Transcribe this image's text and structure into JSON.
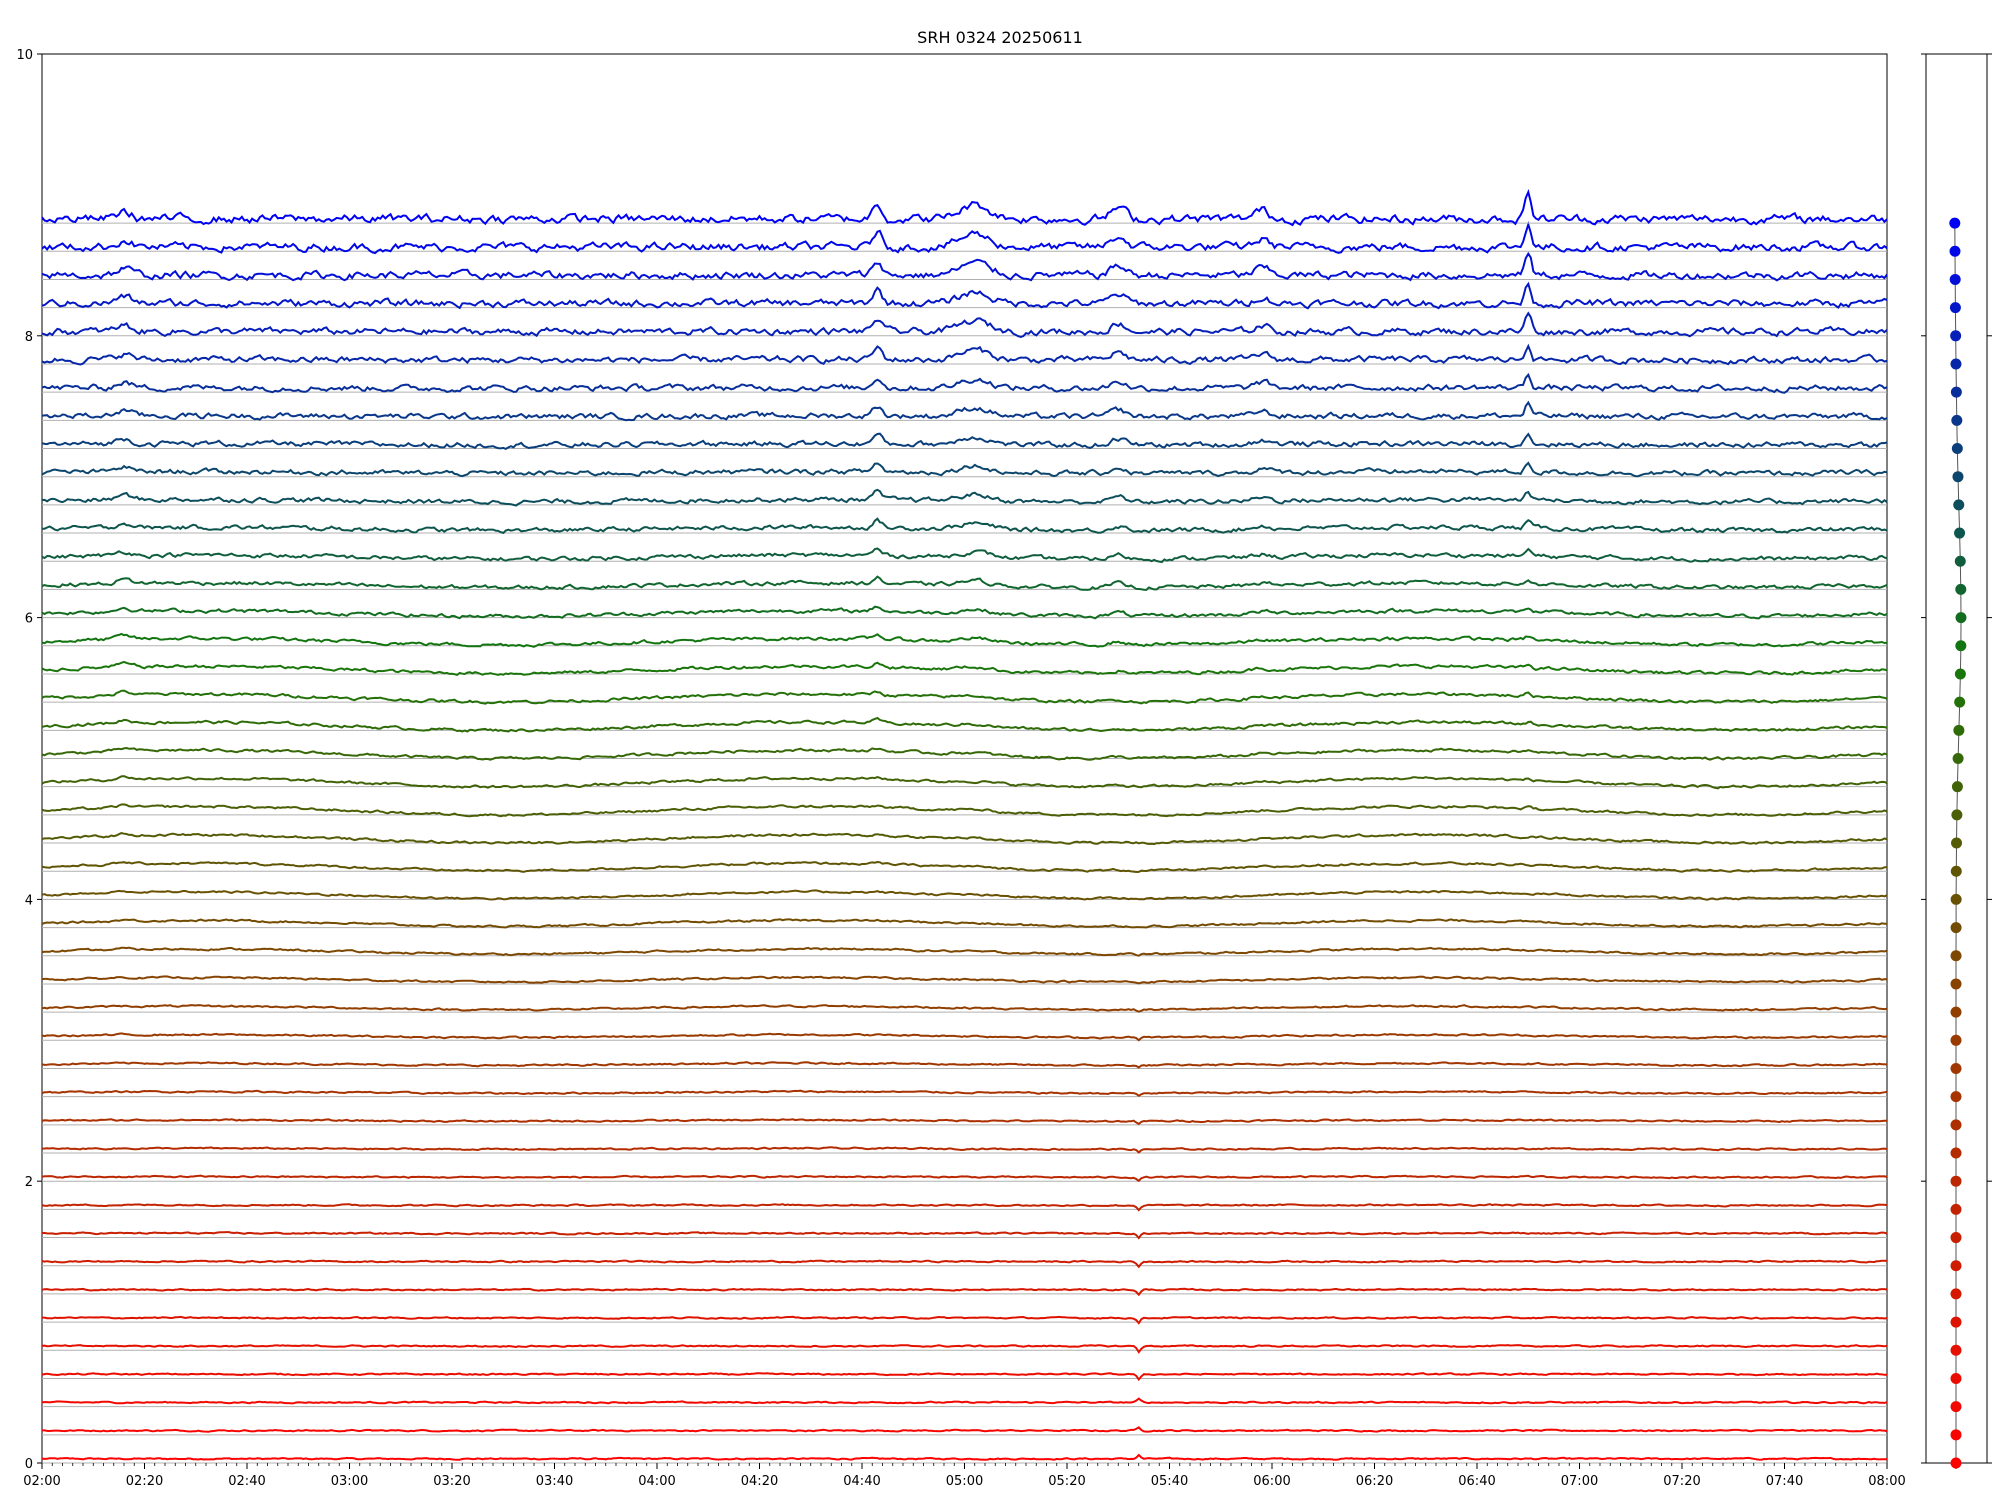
{
  "chart_data": [
    {
      "type": "line",
      "title": "SRH 0324 20250611",
      "xlabel": "",
      "ylabel": "",
      "x_range": [
        "02:00",
        "08:00"
      ],
      "ylim": [
        0,
        10
      ],
      "x_tick_labels": [
        "02:00",
        "02:20",
        "02:40",
        "03:00",
        "03:20",
        "03:40",
        "04:00",
        "04:20",
        "04:40",
        "05:00",
        "05:20",
        "05:40",
        "06:00",
        "06:20",
        "06:40",
        "07:00",
        "07:20",
        "07:40",
        "08:00"
      ],
      "y_ticks": [
        0,
        2,
        4,
        6,
        8,
        10
      ],
      "grid": "horizontal baseline per trace",
      "series_count": 45,
      "series_offset_step": 0.2,
      "color_start": "#ff0000",
      "color_end": "#0000ff",
      "events": [
        {
          "time": "02:15",
          "note": "small step on upper and lower traces"
        },
        {
          "time": "04:43",
          "note": "peak on upper traces"
        },
        {
          "time": "05:02",
          "note": "broad peak on upper traces"
        },
        {
          "time": "05:30",
          "note": "peak on upper traces"
        },
        {
          "time": "05:34",
          "note": "narrow dip/spike on lower traces"
        },
        {
          "time": "05:58",
          "note": "peak on upper traces"
        },
        {
          "time": "06:50",
          "note": "sharp peak on upper traces"
        }
      ]
    },
    {
      "type": "scatter",
      "title": "",
      "note": "side panel: one marker per trace baseline, colour-coded red (bottom) to blue (top)",
      "points_count": 45,
      "ylim": [
        0,
        10
      ]
    }
  ]
}
